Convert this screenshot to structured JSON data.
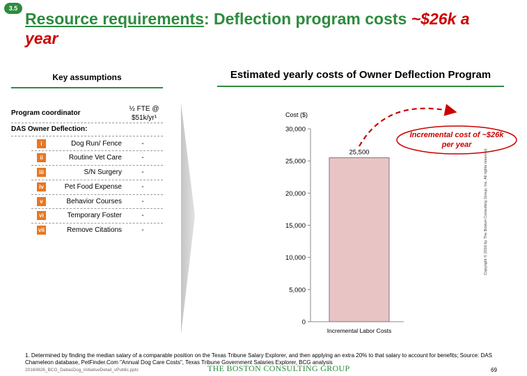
{
  "badge": "3.5",
  "title": {
    "part1": "Resource requirements",
    "part2": ": Deflection program costs ",
    "part3": "~$26k a year"
  },
  "left_panel": {
    "header": "Key assumptions",
    "coordinator_label": "Program coordinator",
    "coordinator_value_line1": "½ FTE @",
    "coordinator_value_line2": "$51k/yr¹",
    "section_label": "DAS Owner Deflection:",
    "items": [
      {
        "num": "i",
        "label": "Dog Run/ Fence",
        "value": "-"
      },
      {
        "num": "ii",
        "label": "Routine Vet Care",
        "value": "-"
      },
      {
        "num": "iii",
        "label": "S/N Surgery",
        "value": "-"
      },
      {
        "num": "iv",
        "label": "Pet Food Expense",
        "value": "-"
      },
      {
        "num": "v",
        "label": "Behavior Courses",
        "value": "-"
      },
      {
        "num": "vi",
        "label": "Temporary Foster",
        "value": "-"
      },
      {
        "num": "vii",
        "label": "Remove Citations",
        "value": "-"
      }
    ]
  },
  "right_panel": {
    "header": "Estimated yearly costs of Owner Deflection Program"
  },
  "chart_data": {
    "type": "bar",
    "title": "Estimated yearly costs of Owner Deflection Program",
    "ylabel": "Cost ($)",
    "xlabel": "",
    "categories": [
      "Incremental Labor Costs"
    ],
    "values": [
      25500
    ],
    "data_labels": [
      "25,500"
    ],
    "ylim": [
      0,
      30000
    ],
    "yticks": [
      0,
      5000,
      10000,
      15000,
      20000,
      25000,
      30000
    ],
    "ytick_labels": [
      "0",
      "5,000",
      "10,000",
      "15,000",
      "20,000",
      "25,000",
      "30,000"
    ],
    "grid": false,
    "bar_color": "#e8c4c4",
    "bar_edge_color": "#7a7a7a",
    "annotation": "Incremental cost of ~$26k per year",
    "annotation_color": "#cc0000"
  },
  "footnote": "1. Determined by finding the median salary of a comparable position on the Texas Tribune Salary Explorer, and then applying an extra 20% to that salary to account for benefits; Source: DAS Chameleon database, PetFinder.Com \"Annual Dog Care Costs\", Texas Tribune Government Salaries Explorer, BCG analysis",
  "file_ref": "20160826_BCG_DallasDog_InitiativeDetail_vPublic.pptx",
  "logo": "THE BOSTON CONSULTING GROUP",
  "page_number": "69",
  "copyright": "Copyright © 2016 by The Boston Consulting Group, Inc. All rights reserved.",
  "colors": {
    "brand_green": "#2e8b3e",
    "accent_orange": "#e87722",
    "accent_red": "#cc0000"
  }
}
